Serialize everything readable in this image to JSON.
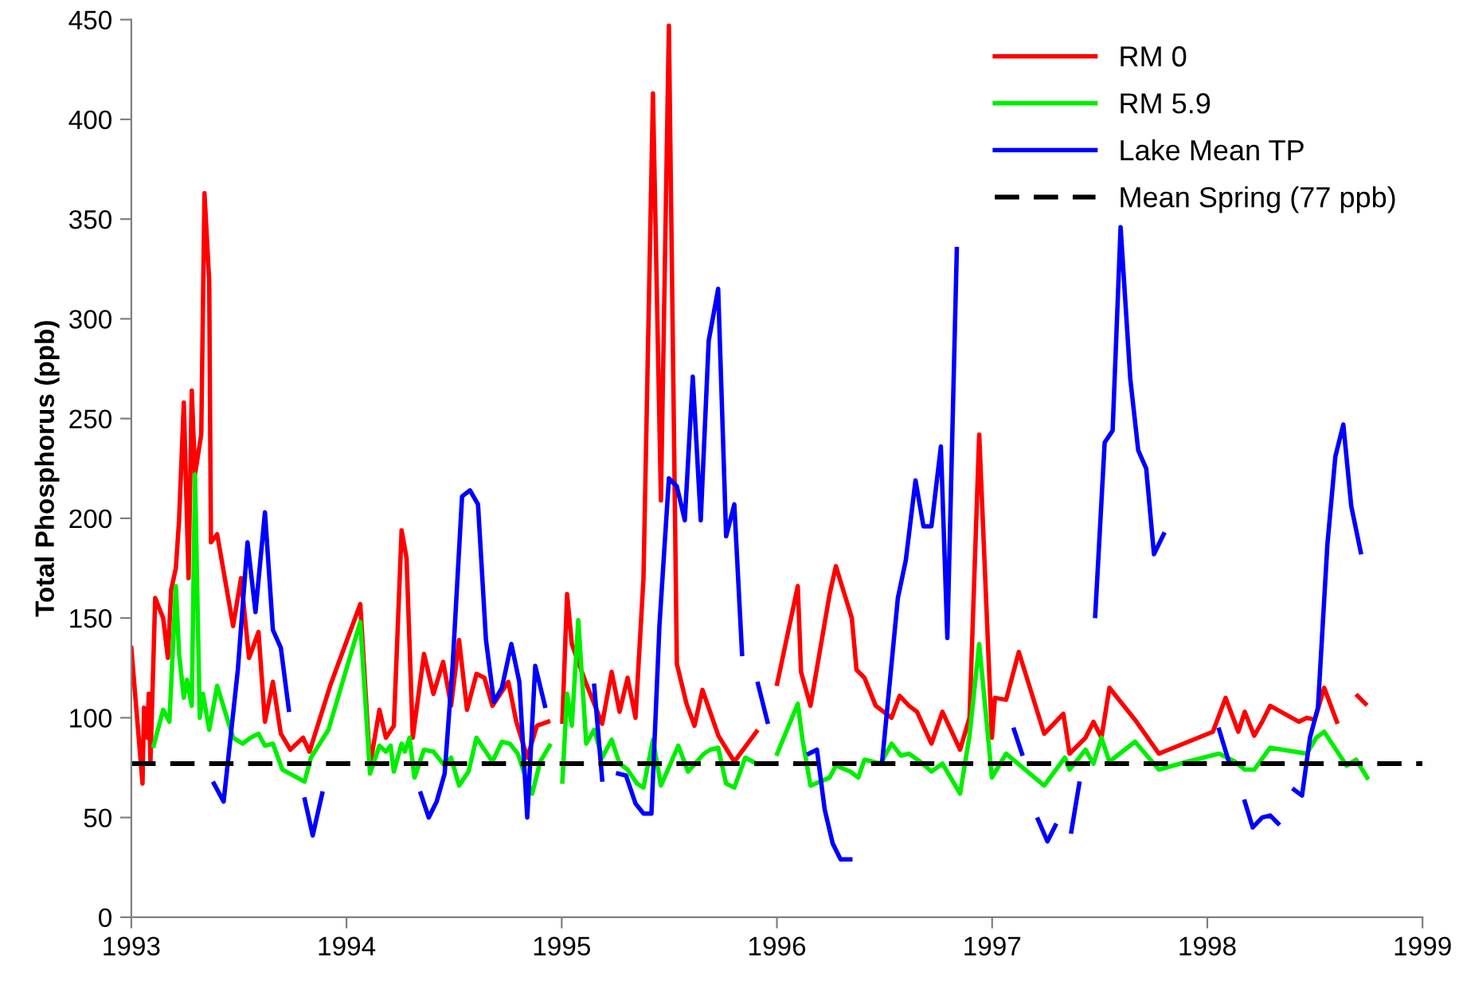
{
  "chart_data": {
    "type": "line",
    "ylabel": "Total Phosphorus (ppb)",
    "xlim": [
      1993,
      1999
    ],
    "xticks": [
      1993,
      1994,
      1995,
      1996,
      1997,
      1998,
      1999
    ],
    "ylim": [
      0,
      450
    ],
    "yticks": [
      0,
      50,
      100,
      150,
      200,
      250,
      300,
      350,
      400,
      450
    ],
    "grid": false,
    "legend": "top right",
    "line_style": "solid",
    "marker": "none",
    "series": [
      {
        "name": "RM 0",
        "color": "#ff0000",
        "x": [
          1993.0,
          1993.052,
          1993.059,
          1993.074,
          1993.081,
          1993.089,
          1993.111,
          1993.148,
          1993.17,
          1993.185,
          1993.207,
          1993.222,
          1993.244,
          1993.266,
          1993.281,
          1993.296,
          1993.325,
          1993.34,
          1993.362,
          1993.37,
          1993.399,
          1993.473,
          1993.51,
          1993.547,
          1993.591,
          1993.621,
          1993.658,
          1993.695,
          1993.739,
          1993.798,
          1993.828,
          1993.924,
          1994.064,
          1994.109,
          1994.153,
          1994.183,
          1994.22,
          1994.256,
          1994.279,
          1994.308,
          1994.36,
          1994.404,
          1994.449,
          1994.486,
          1994.523,
          1994.56,
          1994.604,
          1994.641,
          1994.678,
          1994.752,
          1994.789,
          1994.84,
          1994.885,
          1994.937,
          1994.97,
          1995.003,
          1995.025,
          1995.047,
          1995.114,
          1995.188,
          1995.232,
          1995.269,
          1995.306,
          1995.343,
          1995.38,
          1995.424,
          1995.461,
          1995.498,
          1995.535,
          1995.58,
          1995.617,
          1995.654,
          1995.728,
          1995.802,
          1995.905,
          1995.95,
          1996.001,
          1996.097,
          1996.112,
          1996.156,
          1996.245,
          1996.274,
          1996.348,
          1996.37,
          1996.407,
          1996.459,
          1996.533,
          1996.57,
          1996.614,
          1996.651,
          1996.718,
          1996.769,
          1996.851,
          1996.895,
          1996.94,
          1996.999,
          1997.013,
          1997.065,
          1997.124,
          1997.242,
          1997.331,
          1997.36,
          1997.434,
          1997.471,
          1997.508,
          1997.545,
          1997.664,
          1997.775,
          1998.026,
          1998.085,
          1998.144,
          1998.174,
          1998.218,
          1998.255,
          1998.292,
          1998.425,
          1998.462,
          1998.499,
          1998.543,
          1998.602,
          1998.65,
          1998.698,
          1998.735
        ],
        "values": [
          135,
          67,
          105,
          90,
          112,
          78,
          160,
          150,
          130,
          164,
          175,
          199,
          258,
          170,
          264,
          222,
          242,
          363,
          319,
          188,
          192,
          146,
          170,
          130,
          143,
          98,
          118,
          92,
          84,
          90,
          83,
          116,
          157,
          76,
          104,
          90,
          96,
          194,
          180,
          90,
          132,
          112,
          128,
          106,
          139,
          104,
          122,
          120,
          106,
          118,
          98,
          80,
          96,
          98,
          null,
          98,
          162,
          137,
          117,
          97,
          123,
          103,
          120,
          100,
          170,
          413,
          209,
          447,
          127,
          107,
          96,
          114,
          91,
          78,
          93,
          null,
          117,
          166,
          123,
          106,
          162,
          176,
          150,
          124,
          120,
          106,
          100,
          111,
          106,
          103,
          87,
          103,
          84,
          100,
          242,
          90,
          110,
          109,
          133,
          92,
          102,
          82,
          90,
          98,
          90,
          115,
          99,
          82,
          93,
          110,
          93,
          103,
          91,
          98,
          106,
          98,
          100,
          99,
          115,
          98,
          null,
          111,
          107
        ]
      },
      {
        "name": "RM 5.9",
        "color": "#00ee00",
        "x": [
          1993.104,
          1993.148,
          1993.177,
          1993.207,
          1993.222,
          1993.244,
          1993.259,
          1993.281,
          1993.296,
          1993.318,
          1993.333,
          1993.362,
          1993.399,
          1993.473,
          1993.517,
          1993.554,
          1993.591,
          1993.621,
          1993.658,
          1993.702,
          1993.805,
          1993.835,
          1993.916,
          1994.064,
          1994.109,
          1994.153,
          1994.183,
          1994.205,
          1994.22,
          1994.256,
          1994.271,
          1994.293,
          1994.316,
          1994.36,
          1994.404,
          1994.456,
          1994.486,
          1994.523,
          1994.567,
          1994.604,
          1994.678,
          1994.722,
          1994.759,
          1994.796,
          1994.833,
          1994.863,
          1994.9,
          1994.944,
          1994.97,
          1995.003,
          1995.025,
          1995.047,
          1995.077,
          1995.114,
          1995.151,
          1995.188,
          1995.232,
          1995.269,
          1995.306,
          1995.35,
          1995.38,
          1995.424,
          1995.461,
          1995.542,
          1995.587,
          1995.661,
          1995.69,
          1995.727,
          1995.764,
          1995.802,
          1995.853,
          1995.905,
          1995.95,
          1996.001,
          1996.097,
          1996.119,
          1996.156,
          1996.245,
          1996.274,
          1996.341,
          1996.378,
          1996.407,
          1996.481,
          1996.533,
          1996.577,
          1996.614,
          1996.666,
          1996.718,
          1996.769,
          1996.851,
          1996.895,
          1996.94,
          1996.999,
          1997.065,
          1997.242,
          1997.338,
          1997.36,
          1997.434,
          1997.471,
          1997.508,
          1997.545,
          1997.664,
          1997.775,
          1997.908,
          1998.055,
          1998.129,
          1998.174,
          1998.218,
          1998.292,
          1998.462,
          1998.506,
          1998.543,
          1998.647,
          1998.691,
          1998.743
        ],
        "values": [
          86,
          104,
          98,
          166,
          132,
          110,
          119,
          106,
          222,
          100,
          112,
          94,
          116,
          90,
          87,
          90,
          92,
          86,
          87,
          74,
          68,
          80,
          94,
          148,
          72,
          86,
          83,
          86,
          73,
          87,
          83,
          90,
          70,
          84,
          83,
          76,
          80,
          66,
          73,
          90,
          78,
          88,
          87,
          82,
          70,
          62,
          78,
          86,
          null,
          68,
          112,
          96,
          149,
          87,
          94,
          80,
          89,
          77,
          74,
          67,
          65,
          89,
          66,
          86,
          73,
          82,
          84,
          85,
          67,
          65,
          80,
          77,
          null,
          82,
          107,
          89,
          66,
          70,
          76,
          73,
          70,
          79,
          77,
          87,
          81,
          82,
          78,
          73,
          77,
          62,
          91,
          137,
          70,
          82,
          66,
          80,
          74,
          84,
          77,
          90,
          78,
          88,
          74,
          78,
          82,
          78,
          74,
          74,
          85,
          82,
          90,
          93,
          76,
          79,
          70
        ]
      },
      {
        "name": "Lake Mean TP",
        "color": "#0000ff",
        "x": [
          1993.384,
          1993.429,
          1993.495,
          1993.54,
          1993.577,
          1993.621,
          1993.658,
          1993.695,
          1993.732,
          1993.77,
          1993.806,
          1993.843,
          1993.887,
          1994.1,
          1994.345,
          1994.382,
          1994.419,
          1994.456,
          1994.493,
          1994.537,
          1994.574,
          1994.611,
          1994.648,
          1994.685,
          1994.722,
          1994.766,
          1994.803,
          1994.84,
          1994.877,
          1994.922,
          1995.05,
          1995.151,
          1995.188,
          1995.22,
          1995.262,
          1995.299,
          1995.343,
          1995.38,
          1995.417,
          1995.454,
          1995.498,
          1995.535,
          1995.572,
          1995.609,
          1995.646,
          1995.683,
          1995.727,
          1995.764,
          1995.802,
          1995.838,
          1995.88,
          1995.912,
          1995.956,
          1996.05,
          1996.149,
          1996.186,
          1996.222,
          1996.259,
          1996.296,
          1996.341,
          1996.4,
          1996.489,
          1996.562,
          1996.599,
          1996.644,
          1996.681,
          1996.718,
          1996.762,
          1996.792,
          1996.836,
          1996.95,
          1997.102,
          1997.139,
          1997.18,
          1997.213,
          1997.257,
          1997.294,
          1997.33,
          1997.368,
          1997.405,
          1997.44,
          1997.479,
          1997.523,
          1997.56,
          1997.597,
          1997.642,
          1997.679,
          1997.716,
          1997.752,
          1997.797,
          1997.9,
          1998.055,
          1998.1,
          1998.14,
          1998.174,
          1998.211,
          1998.255,
          1998.292,
          1998.329,
          1998.37,
          1998.403,
          1998.44,
          1998.477,
          1998.514,
          1998.558,
          1998.595,
          1998.632,
          1998.669,
          1998.713
        ],
        "values": [
          67,
          58,
          124,
          188,
          153,
          203,
          144,
          135,
          104,
          null,
          59,
          41,
          62,
          null,
          62,
          50,
          58,
          72,
          126,
          211,
          214,
          207,
          139,
          108,
          115,
          137,
          118,
          50,
          126,
          106,
          null,
          116,
          69,
          null,
          72,
          71,
          57,
          52,
          52,
          146,
          220,
          216,
          199,
          271,
          199,
          289,
          315,
          191,
          207,
          132,
          null,
          117,
          98,
          null,
          82,
          84,
          54,
          37,
          29,
          29,
          null,
          78,
          160,
          179,
          219,
          196,
          196,
          236,
          140,
          335,
          null,
          94,
          82,
          null,
          49,
          38,
          46,
          null,
          43,
          67,
          null,
          151,
          238,
          244,
          346,
          270,
          234,
          225,
          182,
          192,
          null,
          94,
          78,
          null,
          58,
          45,
          50,
          51,
          47,
          null,
          64,
          61,
          90,
          105,
          187,
          231,
          247,
          206,
          183
        ]
      }
    ],
    "ref_lines": [
      {
        "axis": "y",
        "value": 77,
        "label": "Mean Spring (77 ppb)",
        "color": "#000000",
        "line_style": "dashed"
      }
    ]
  }
}
